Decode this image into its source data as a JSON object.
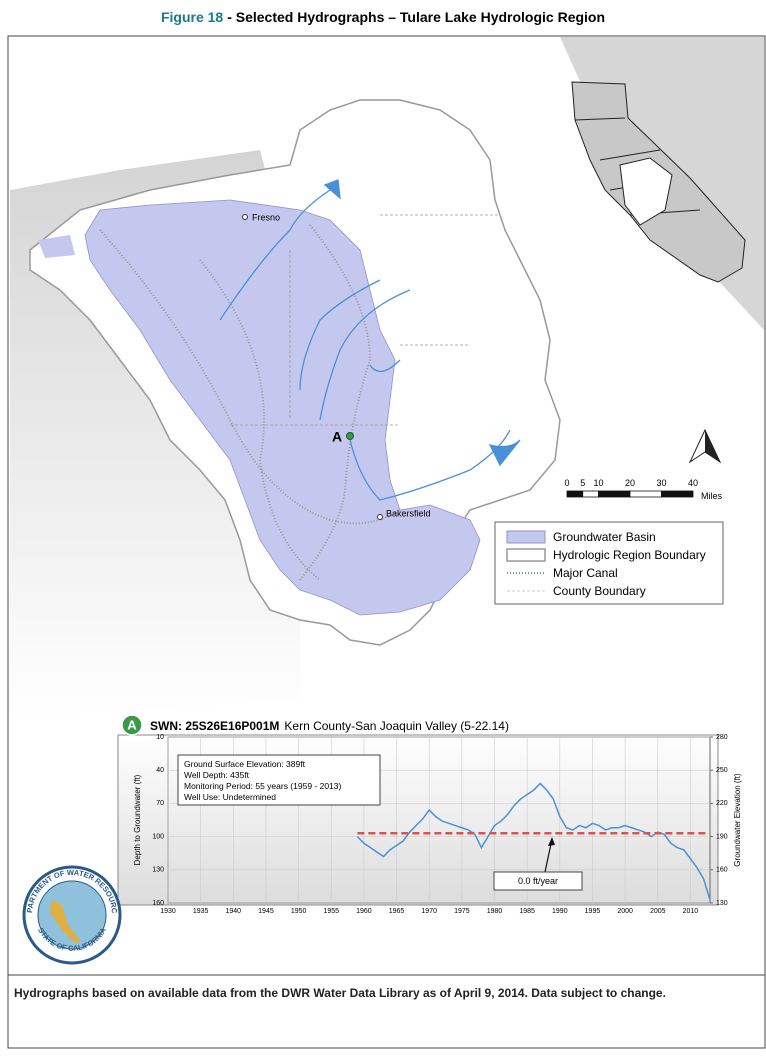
{
  "header": {
    "figure_label": "Figure 18",
    "title": "- Selected Hydrographs – Tulare Lake Hydrologic Region"
  },
  "map": {
    "labels": {
      "city_1": "Fresno",
      "city_2": "Bakersfield",
      "well": "A"
    },
    "scale_bar": {
      "ticks": [
        0,
        5,
        10,
        20,
        30,
        40
      ],
      "unit": "Miles"
    },
    "legend": [
      "Groundwater Basin",
      "Hydrologic Region Boundary",
      "Major Canal",
      "County Boundary"
    ]
  },
  "chart_data": {
    "type": "line",
    "marker": "A",
    "title": "SWN: 25S26E16P001M",
    "subtitle": "Kern County-San Joaquin Valley (5-22.14)",
    "y_label": "Depth to Groundwater (ft)",
    "y2_label": "Groundwater Elevation (ft)",
    "info": [
      "Ground Surface Elevation: 389ft",
      "Well Depth: 435ft",
      "Monitoring Period: 55 years (1959 - 2013)",
      "Well Use: Undetermined"
    ],
    "annotation": "0.0 ft/year",
    "xlim": [
      1930,
      2013
    ],
    "xticks": [
      1930,
      1935,
      1940,
      1945,
      1950,
      1955,
      1960,
      1965,
      1970,
      1975,
      1980,
      1985,
      1990,
      1995,
      2000,
      2005,
      2010
    ],
    "ylim": [
      10,
      160
    ],
    "y_inverted": true,
    "yticks": [
      10,
      40,
      70,
      100,
      130,
      160
    ],
    "y2lim": [
      280,
      130
    ],
    "y2ticks": [
      280,
      250,
      220,
      190,
      160,
      130
    ],
    "grid": true,
    "series": [
      {
        "color": "#4a90d9",
        "x": [
          1959,
          1960,
          1961,
          1962,
          1963,
          1964,
          1965,
          1966,
          1967,
          1968,
          1969,
          1970,
          1971,
          1972,
          1973,
          1974,
          1975,
          1976,
          1977,
          1978,
          1979,
          1980,
          1981,
          1982,
          1983,
          1984,
          1985,
          1986,
          1987,
          1988,
          1989,
          1990,
          1991,
          1992,
          1993,
          1994,
          1995,
          1996,
          1997,
          1998,
          1999,
          2000,
          2001,
          2002,
          2003,
          2004,
          2005,
          2006,
          2007,
          2008,
          2009,
          2010,
          2011,
          2012,
          2013
        ],
        "values": [
          100,
          106,
          110,
          114,
          118,
          112,
          108,
          104,
          96,
          90,
          84,
          76,
          82,
          86,
          88,
          90,
          92,
          94,
          98,
          110,
          100,
          90,
          86,
          80,
          72,
          66,
          62,
          58,
          52,
          58,
          66,
          82,
          92,
          94,
          90,
          92,
          88,
          90,
          94,
          92,
          92,
          90,
          92,
          94,
          96,
          100,
          96,
          98,
          106,
          110,
          112,
          120,
          128,
          138,
          157
        ]
      },
      {
        "color": "#d9534f",
        "dashed": true,
        "x": [
          1959,
          2013
        ],
        "values": [
          97,
          97
        ]
      }
    ]
  },
  "seal": {
    "top": "DEPARTMENT OF WATER RESOURCES",
    "bottom": "STATE OF CALIFORNIA"
  },
  "footer": {
    "note": "Hydrographs based on available data from the DWR Water Data Library as of April 9, 2014.  Data subject to change."
  }
}
